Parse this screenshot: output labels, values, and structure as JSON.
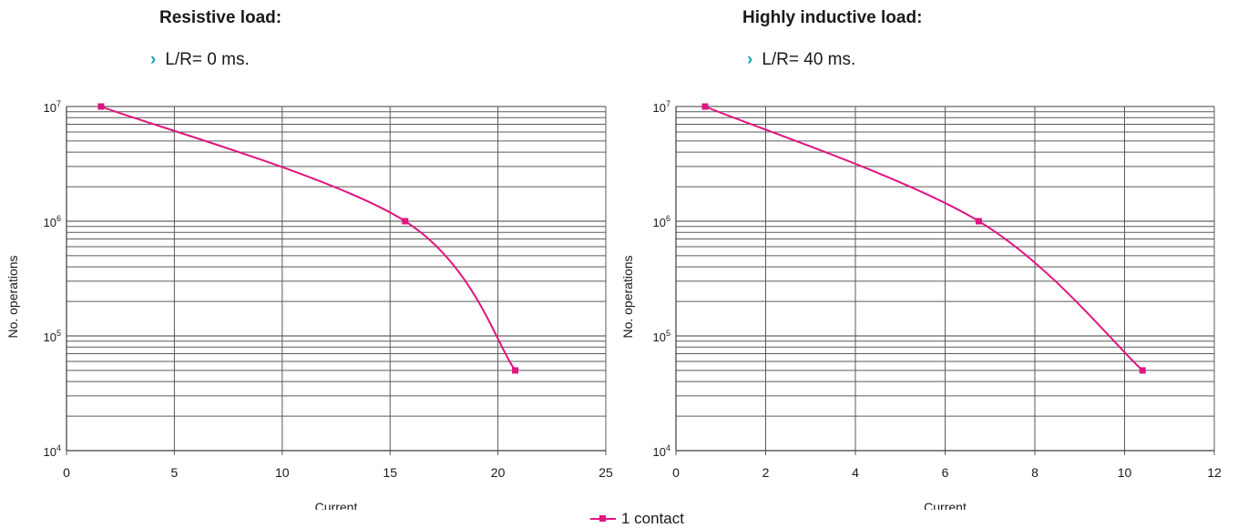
{
  "left_panel": {
    "heading": "Resistive load:",
    "bullet_icon": "chevron-right-icon",
    "bullet_text": "L/R= 0 ms."
  },
  "right_panel": {
    "heading": "Highly inductive load:",
    "bullet_icon": "chevron-right-icon",
    "bullet_text": "L/R= 40 ms."
  },
  "legend": {
    "label": "1 contact",
    "color": "#e0157f"
  },
  "chart_data": [
    {
      "type": "line",
      "xlabel": "Current",
      "ylabel": "No. operations",
      "y_scale": "log",
      "xlim": [
        0,
        25
      ],
      "ylim": [
        10000,
        10000000
      ],
      "x_ticks": [
        0,
        5,
        10,
        15,
        20,
        25
      ],
      "y_ticks": [
        10000,
        100000,
        1000000,
        10000000
      ],
      "y_tick_labels": [
        {
          "base": "10",
          "exp": "4"
        },
        {
          "base": "10",
          "exp": "5"
        },
        {
          "base": "10",
          "exp": "6"
        },
        {
          "base": "10",
          "exp": "7"
        }
      ],
      "grid": true,
      "series": [
        {
          "name": "1 contact",
          "color": "#e0157f",
          "points": [
            [
              1.6,
              10000000
            ],
            [
              15.7,
              1000000
            ],
            [
              20.8,
              50000
            ]
          ]
        }
      ]
    },
    {
      "type": "line",
      "xlabel": "Current",
      "ylabel": "No. operations",
      "y_scale": "log",
      "xlim": [
        0,
        12
      ],
      "ylim": [
        10000,
        10000000
      ],
      "x_ticks": [
        0,
        2,
        4,
        6,
        8,
        10,
        12
      ],
      "y_ticks": [
        10000,
        100000,
        1000000,
        10000000
      ],
      "y_tick_labels": [
        {
          "base": "10",
          "exp": "4"
        },
        {
          "base": "10",
          "exp": "5"
        },
        {
          "base": "10",
          "exp": "6"
        },
        {
          "base": "10",
          "exp": "7"
        }
      ],
      "grid": true,
      "series": [
        {
          "name": "1 contact",
          "color": "#e0157f",
          "points": [
            [
              0.65,
              10000000
            ],
            [
              6.75,
              1000000
            ],
            [
              10.4,
              50000
            ]
          ]
        }
      ]
    }
  ]
}
